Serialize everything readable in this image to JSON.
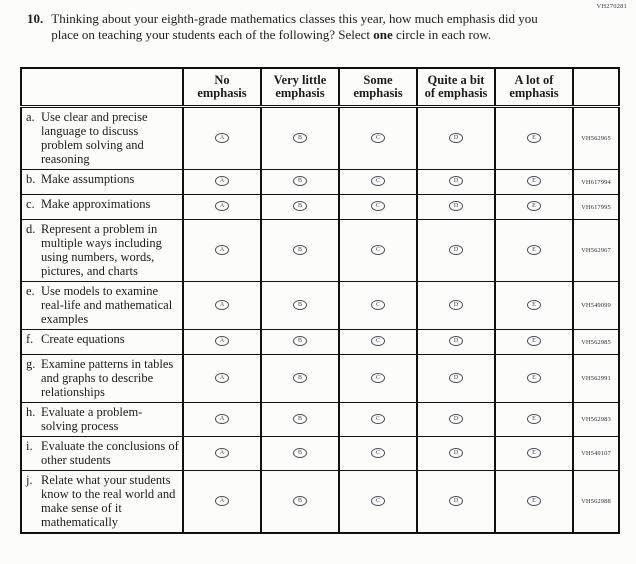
{
  "page_code": "VH270281",
  "question": {
    "number": "10.",
    "text": "Thinking about your eighth-grade mathematics classes this year, how much emphasis did you place on teaching your students each of the following? Select ",
    "bold": "one",
    "text_after": " circle in each row."
  },
  "table": {
    "option_letters": [
      "A",
      "B",
      "C",
      "D",
      "E"
    ],
    "columns": [
      {
        "line1": "No",
        "line2": "emphasis"
      },
      {
        "line1": "Very little",
        "line2": "emphasis"
      },
      {
        "line1": "Some",
        "line2": "emphasis"
      },
      {
        "line1": "Quite a bit",
        "line2": "of emphasis"
      },
      {
        "line1": "A lot of",
        "line2": "emphasis"
      }
    ],
    "rows": [
      {
        "letter": "a.",
        "text": "Use clear and precise language to discuss problem solving and reasoning",
        "code": "VH562965"
      },
      {
        "letter": "b.",
        "text": "Make assumptions",
        "code": "VH617994"
      },
      {
        "letter": "c.",
        "text": "Make approximations",
        "code": "VH617995"
      },
      {
        "letter": "d.",
        "text": "Represent a problem in multiple ways including using numbers, words, pictures, and charts",
        "code": "VH562967"
      },
      {
        "letter": "e.",
        "text": "Use models to examine real-life and mathematical examples",
        "code": "VH549099"
      },
      {
        "letter": "f.",
        "text": "Create equations",
        "code": "VH562985"
      },
      {
        "letter": "g.",
        "text": "Examine patterns in tables and graphs to describe relationships",
        "code": "VH562991"
      },
      {
        "letter": "h.",
        "text": "Evaluate a problem-solving process",
        "code": "VH562983"
      },
      {
        "letter": "i.",
        "text": "Evaluate the conclusions of other students",
        "code": "VH549107"
      },
      {
        "letter": "j.",
        "text": "Relate what your students know to the real world and make sense of it mathematically",
        "code": "VH562988"
      }
    ]
  }
}
